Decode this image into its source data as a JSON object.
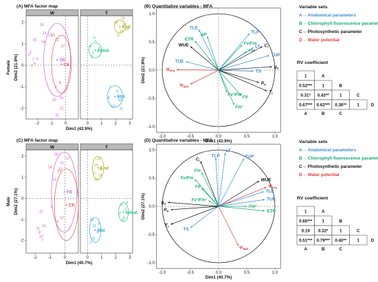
{
  "panels": {
    "a_title": "(A) MFA factor map",
    "b_title": "(B) Quantitative variables - MFA",
    "c_title": "(C) MFA factor map",
    "d_title": "(D) Quantitative variables - MFA"
  },
  "colors": {
    "A": "#3a8fd0",
    "B": "#16a87a",
    "C": "#111111",
    "D": "#e23b3b",
    "CK": "#e2584f",
    "TR": "#cc60d8",
    "Initial": "#1ec28a",
    "Mid": "#2fa8d8",
    "End": "#a8a81e"
  },
  "chart_data": [
    {
      "type": "scatter",
      "panel": "A",
      "strips": [
        "W",
        "T"
      ],
      "xlabel": "Dim1 (42.9%)",
      "ylabel": "Dim2 (21.9%)",
      "row_label": "Female",
      "xlim_left": [
        -2.8,
        0.9
      ],
      "xticks_left": [
        -2,
        -1,
        0
      ],
      "xlim_right": [
        -0.5,
        3.2
      ],
      "xticks_right": [
        0,
        1,
        2,
        3
      ],
      "ylim": [
        -2.5,
        2.3
      ],
      "yticks": [
        -2,
        -1,
        0,
        1,
        2
      ],
      "groups": [
        {
          "name": "TR",
          "panel": "W",
          "center": [
            -0.6,
            0.25
          ],
          "ellipse": [
            0.95,
            1.7
          ],
          "points": [
            [
              -1.7,
              1.9,
              "18"
            ],
            [
              -1.1,
              1.4,
              "13"
            ],
            [
              -2.2,
              1.2,
              "16"
            ],
            [
              -1.5,
              1.5,
              "14"
            ],
            [
              -2.5,
              0.6,
              "3"
            ],
            [
              -2.2,
              0.1,
              "4"
            ],
            [
              -2.6,
              0.5,
              "5"
            ],
            [
              -2.3,
              0.3,
              "1"
            ],
            [
              -0.7,
              -1.0,
              "9"
            ],
            [
              -0.3,
              -1.5,
              "10"
            ],
            [
              -0.6,
              -2.3,
              "11"
            ]
          ]
        },
        {
          "name": "CK",
          "panel": "W",
          "center": [
            -0.3,
            0.05
          ],
          "ellipse": [
            0.7,
            1.35
          ],
          "points": [
            [
              -0.9,
              1.4,
              "15"
            ],
            [
              -0.6,
              1.2,
              "12"
            ],
            [
              -0.2,
              0.9,
              "17"
            ],
            [
              -1.6,
              1.1,
              "14"
            ],
            [
              -2.0,
              0.3,
              "6"
            ],
            [
              -2.4,
              0.0,
              "2"
            ],
            [
              -0.4,
              -0.8,
              "8"
            ],
            [
              0.1,
              -1.1,
              "7"
            ],
            [
              -0.8,
              -1.6,
              "10"
            ],
            [
              -0.3,
              -2.0,
              "12"
            ]
          ]
        },
        {
          "name": "Initial",
          "panel": "T",
          "center": [
            0.55,
            0.7
          ],
          "ellipse": [
            0.45,
            0.35
          ],
          "points": [
            [
              0.2,
              0.9,
              "4"
            ],
            [
              0.4,
              0.6,
              "1"
            ],
            [
              0.6,
              1.1,
              "5"
            ],
            [
              0.8,
              0.8,
              "3"
            ],
            [
              0.3,
              0.4,
              "2"
            ],
            [
              0.5,
              1.3,
              "6"
            ]
          ]
        },
        {
          "name": "Mid",
          "panel": "T",
          "center": [
            1.95,
            -1.45
          ],
          "ellipse": [
            0.55,
            0.5
          ],
          "points": [
            [
              1.6,
              -1.0,
              "7"
            ],
            [
              2.1,
              -1.2,
              "9"
            ],
            [
              2.3,
              -1.6,
              "10"
            ],
            [
              1.8,
              -1.9,
              "12"
            ],
            [
              2.4,
              -2.0,
              "11"
            ],
            [
              1.5,
              -1.5,
              "8"
            ]
          ]
        },
        {
          "name": "End",
          "panel": "T",
          "center": [
            2.3,
            1.8
          ],
          "ellipse": [
            0.4,
            0.3
          ],
          "points": [
            [
              2.0,
              2.0,
              "18"
            ],
            [
              2.4,
              1.6,
              "16"
            ],
            [
              2.6,
              1.9,
              "15"
            ],
            [
              2.2,
              1.4,
              "17"
            ],
            [
              2.8,
              1.7,
              "14"
            ],
            [
              2.5,
              2.2,
              "13"
            ]
          ]
        }
      ]
    },
    {
      "type": "scatter",
      "panel": "C",
      "strips": [
        "W",
        "T"
      ],
      "xlabel": "Dim1 (40.7%)",
      "ylabel": "Dim2 (27.1%)",
      "row_label": "Male",
      "xlim_left": [
        -2.6,
        0.9
      ],
      "xticks_left": [
        -2,
        -1,
        0
      ],
      "xlim_right": [
        -0.5,
        3.2
      ],
      "xticks_right": [
        0,
        1,
        2,
        3
      ],
      "ylim": [
        -2.6,
        2.3
      ],
      "yticks": [
        -2,
        -1,
        0,
        1,
        2
      ],
      "groups": [
        {
          "name": "TR",
          "panel": "W",
          "center": [
            -0.05,
            0.3
          ],
          "ellipse": [
            0.85,
            1.9
          ],
          "points": [
            [
              -0.6,
              2.1,
              "18"
            ],
            [
              -0.2,
              1.7,
              "16"
            ],
            [
              -0.4,
              1.3,
              "15"
            ],
            [
              -0.7,
              0.9,
              "14"
            ],
            [
              -1.6,
              -0.6,
              "12"
            ],
            [
              -1.8,
              -1.4,
              "11"
            ],
            [
              -1.6,
              -1.8,
              "10"
            ],
            [
              -0.9,
              -0.4,
              "9"
            ]
          ]
        },
        {
          "name": "CK",
          "panel": "W",
          "center": [
            0.1,
            -0.3
          ],
          "ellipse": [
            0.8,
            1.7
          ],
          "points": [
            [
              0.2,
              1.9,
              "17"
            ],
            [
              -0.3,
              1.4,
              "13"
            ],
            [
              -1.0,
              1.5,
              "14"
            ],
            [
              -0.2,
              -0.9,
              "12"
            ],
            [
              -1.4,
              -1.3,
              "11"
            ],
            [
              -1.7,
              -1.6,
              "8"
            ],
            [
              -1.5,
              -2.0,
              "7"
            ],
            [
              -0.5,
              -1.1,
              "9"
            ]
          ]
        },
        {
          "name": "Initial",
          "panel": "T",
          "center": [
            2.55,
            -0.65
          ],
          "ellipse": [
            0.35,
            0.45
          ],
          "points": [
            [
              2.4,
              -0.3,
              "4"
            ],
            [
              2.7,
              -0.5,
              "1"
            ],
            [
              2.6,
              -0.9,
              "5"
            ],
            [
              2.3,
              -0.7,
              "2"
            ],
            [
              2.8,
              -0.2,
              "3"
            ],
            [
              2.5,
              -1.0,
              "6"
            ]
          ]
        },
        {
          "name": "Mid",
          "panel": "T",
          "center": [
            0.55,
            -1.5
          ],
          "ellipse": [
            0.4,
            0.6
          ],
          "points": [
            [
              0.3,
              -1.0,
              "12"
            ],
            [
              0.5,
              -1.3,
              "11"
            ],
            [
              0.7,
              -1.6,
              "9"
            ],
            [
              0.4,
              -1.9,
              "10"
            ],
            [
              0.8,
              -1.2,
              "8"
            ],
            [
              0.2,
              -2.1,
              "7"
            ]
          ]
        },
        {
          "name": "End",
          "panel": "T",
          "center": [
            0.75,
            1.45
          ],
          "ellipse": [
            0.4,
            0.55
          ],
          "points": [
            [
              0.8,
              1.9,
              "18"
            ],
            [
              0.6,
              1.6,
              "16"
            ],
            [
              0.9,
              1.4,
              "15"
            ],
            [
              0.5,
              1.2,
              "17"
            ],
            [
              0.9,
              1.1,
              "14"
            ],
            [
              0.6,
              0.9,
              "13"
            ]
          ]
        }
      ]
    },
    {
      "type": "correlation_circle",
      "panel": "B",
      "xlabel": "Dim1 (42.9%)",
      "ylabel": "Dim2 (21.9%)",
      "xlim": [
        -1.1,
        1.1
      ],
      "xticks": [
        -1.0,
        -0.5,
        0.0,
        0.5,
        1.0
      ],
      "ylim": [
        -1.1,
        1.1
      ],
      "yticks": [
        -1.0,
        -0.5,
        0.0,
        0.5,
        1.0
      ],
      "variables": [
        {
          "label": "TLE",
          "set": "A",
          "x": -0.35,
          "y": 0.72
        },
        {
          "label": "ETR",
          "set": "B",
          "x": -0.42,
          "y": 0.52
        },
        {
          "label": "φP",
          "set": "B",
          "x": -0.2,
          "y": 0.6
        },
        {
          "label": "WUE",
          "set": "C",
          "x": -0.5,
          "y": 0.42
        },
        {
          "label": "TUE",
          "set": "A",
          "x": -0.58,
          "y": 0.15
        },
        {
          "label": "ΨPre",
          "set": "D",
          "x": -0.74,
          "y": 0.01
        },
        {
          "label": "ΨMid",
          "set": "D",
          "x": -0.5,
          "y": -0.25
        },
        {
          "label": "TLP",
          "set": "A",
          "x": 0.55,
          "y": 0.65
        },
        {
          "label": "Fv/Fm",
          "set": "B",
          "x": 0.42,
          "y": 0.45
        },
        {
          "label": "Fm",
          "set": "B",
          "x": 0.5,
          "y": 0.33
        },
        {
          "label": "LT",
          "set": "A",
          "x": 0.62,
          "y": 0.4
        },
        {
          "label": "Ci",
          "set": "C",
          "x": 0.78,
          "y": 0.42
        },
        {
          "label": "TUP",
          "set": "A",
          "x": 0.9,
          "y": 0.26
        },
        {
          "label": "gs",
          "set": "C",
          "x": 0.95,
          "y": 0.06
        },
        {
          "label": "TS",
          "set": "A",
          "x": 0.62,
          "y": -0.02
        },
        {
          "label": "Pn",
          "set": "C",
          "x": 0.72,
          "y": -0.22
        },
        {
          "label": "Tr",
          "set": "C",
          "x": 0.86,
          "y": -0.37
        },
        {
          "label": "F0",
          "set": "B",
          "x": 0.4,
          "y": -0.45
        },
        {
          "label": "Fm'",
          "set": "B",
          "x": 0.28,
          "y": -0.62
        },
        {
          "label": "Fv'/Fm'",
          "set": "B",
          "x": 0.15,
          "y": -0.4
        }
      ]
    },
    {
      "type": "correlation_circle",
      "panel": "D",
      "xlabel": "Dim1 (40.7%)",
      "ylabel": "Dim2 (27.1%)",
      "xlim": [
        -1.1,
        1.1
      ],
      "xticks": [
        -1.0,
        -0.5,
        0.0,
        0.5,
        1.0
      ],
      "ylim": [
        -1.1,
        1.1
      ],
      "yticks": [
        -1.0,
        -0.5,
        0.0,
        0.5,
        1.0
      ],
      "variables": [
        {
          "label": "Ci",
          "set": "C",
          "x": -0.32,
          "y": 0.8
        },
        {
          "label": "TLP",
          "set": "A",
          "x": -0.05,
          "y": 0.86
        },
        {
          "label": "LT",
          "set": "A",
          "x": 0.12,
          "y": 0.95
        },
        {
          "label": "TUP",
          "set": "A",
          "x": 0.45,
          "y": 0.85
        },
        {
          "label": "Fm",
          "set": "B",
          "x": -0.3,
          "y": 0.6
        },
        {
          "label": "Fv/Fm",
          "set": "B",
          "x": -0.42,
          "y": 0.48
        },
        {
          "label": "F0",
          "set": "B",
          "x": -0.3,
          "y": 0.32
        },
        {
          "label": "Fv'/Fm'",
          "set": "B",
          "x": -0.18,
          "y": 0.1
        },
        {
          "label": "gs",
          "set": "C",
          "x": -0.9,
          "y": 0.07
        },
        {
          "label": "Pn",
          "set": "C",
          "x": -0.85,
          "y": -0.06
        },
        {
          "label": "Tr",
          "set": "C",
          "x": -0.85,
          "y": -0.32
        },
        {
          "label": "TS",
          "set": "A",
          "x": -0.5,
          "y": -0.38
        },
        {
          "label": "WUE",
          "set": "C",
          "x": 0.72,
          "y": 0.45
        },
        {
          "label": "ΨPre",
          "set": "D",
          "x": 0.85,
          "y": 0.34
        },
        {
          "label": "TLE",
          "set": "A",
          "x": 0.8,
          "y": 0.26
        },
        {
          "label": "TUE",
          "set": "A",
          "x": 0.82,
          "y": 0.12
        },
        {
          "label": "ETR",
          "set": "B",
          "x": 0.82,
          "y": -0.08
        },
        {
          "label": "Fm'",
          "set": "B",
          "x": 0.5,
          "y": 0.0
        },
        {
          "label": "ΨMid",
          "set": "D",
          "x": 0.35,
          "y": -0.7
        }
      ]
    }
  ],
  "legend": {
    "title": "Variable sets",
    "items": [
      {
        "set": "A",
        "text": "A→ Anatomical parameters"
      },
      {
        "set": "B",
        "text": "B→ Chlorophyll fluorescence parameters"
      },
      {
        "set": "C",
        "text": "C→ Photosynthetic parameter"
      },
      {
        "set": "D",
        "text": "D→ Water potential"
      }
    ]
  },
  "rv_tables": [
    {
      "title": "RV coefficient",
      "sets": [
        "A",
        "B",
        "C",
        "D"
      ],
      "rows": [
        [
          "1"
        ],
        [
          "0.52***",
          "1"
        ],
        [
          "0.31*",
          "0.43**",
          "1"
        ],
        [
          "0.67***",
          "0.62***",
          "0.36**",
          "1"
        ]
      ]
    },
    {
      "title": "RV coefficient",
      "sets": [
        "A",
        "B",
        "C",
        "D"
      ],
      "rows": [
        [
          "1"
        ],
        [
          "0.65***",
          "1"
        ],
        [
          "0.19",
          "0.32*",
          "1"
        ],
        [
          "0.51***",
          "0.79***",
          "0.40**",
          "1"
        ]
      ]
    }
  ]
}
